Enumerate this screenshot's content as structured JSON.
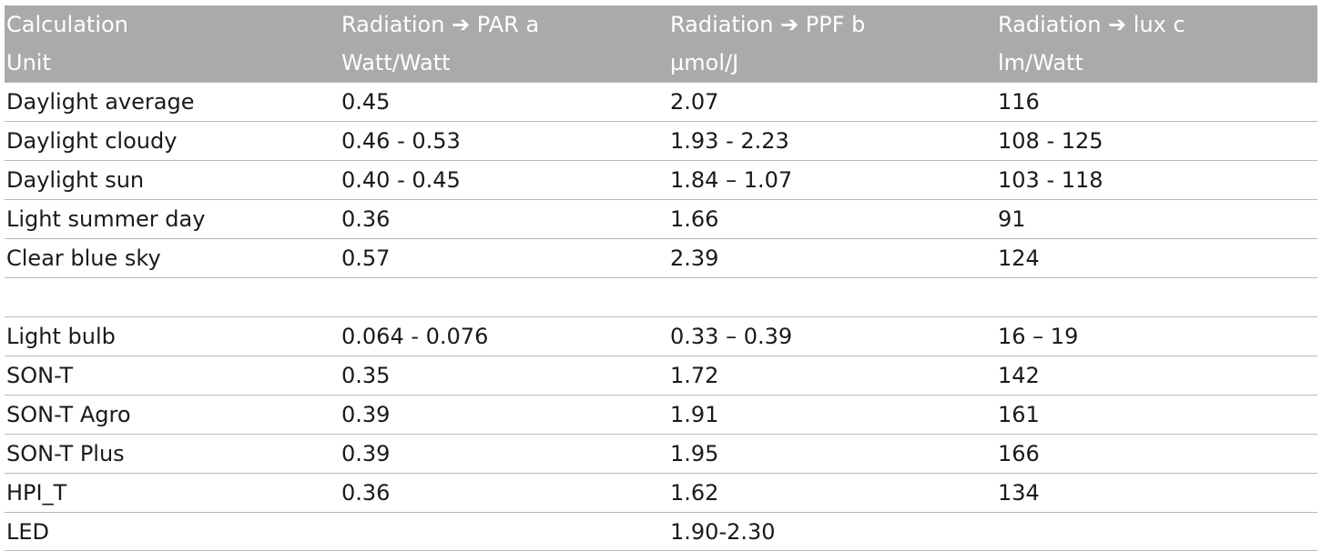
{
  "header": {
    "row1": [
      "Calculation",
      "Radiation ➔ PAR a",
      "Radiation ➔ PPF b",
      "Radiation ➔ lux c"
    ],
    "row2": [
      "Unit",
      "Watt/Watt",
      "µmol/J",
      "lm/Watt"
    ]
  },
  "groups": [
    [
      [
        "Daylight average",
        "0.45",
        "2.07",
        "116"
      ],
      [
        "Daylight cloudy",
        "0.46 - 0.53",
        "1.93 - 2.23",
        "108 - 125"
      ],
      [
        "Daylight sun",
        "0.40 - 0.45",
        "1.84 – 1.07",
        "103 - 118"
      ],
      [
        "Light summer day",
        "0.36",
        "1.66",
        "91"
      ],
      [
        "Clear blue sky",
        "0.57",
        "2.39",
        "124"
      ]
    ],
    [
      [
        "Light bulb",
        "0.064 - 0.076",
        "0.33 – 0.39",
        "16 – 19"
      ],
      [
        "SON-T",
        "0.35",
        "1.72",
        "142"
      ],
      [
        "SON-T Agro",
        "0.39",
        "1.91",
        "161"
      ],
      [
        "SON-T Plus",
        "0.39",
        "1.95",
        "166"
      ],
      [
        "HPI_T",
        "0.36",
        "1.62",
        "134"
      ],
      [
        "LED",
        "",
        "1.90-2.30",
        ""
      ]
    ]
  ],
  "colors": {
    "header_bg": "#a8abaa",
    "header_text": "#ffffff",
    "rule": "#b8b8b8",
    "body_text": "#1a1a1a"
  }
}
